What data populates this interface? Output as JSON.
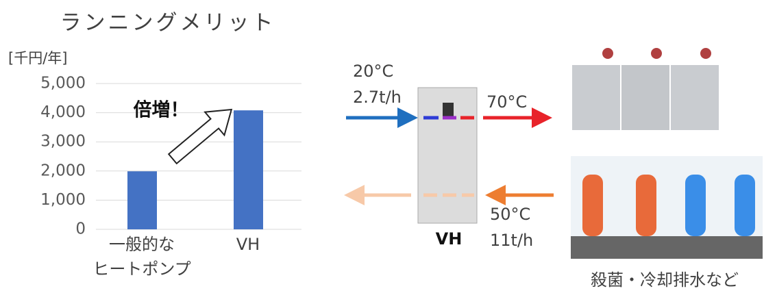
{
  "chart_data": {
    "type": "bar",
    "title": "ランニングメリット",
    "unit_label": "[千円/年]",
    "categories": [
      "一般的な\nヒートポンプ",
      "VH"
    ],
    "values": [
      1990,
      4080
    ],
    "color": "#4472c4",
    "ylim": [
      0,
      5000
    ],
    "yticks": [
      0,
      {
        "value": 1000,
        "label": "1,000"
      },
      {
        "value": 2000,
        "label": "2,000"
      },
      {
        "value": 3000,
        "label": "3,000"
      },
      {
        "value": 4000,
        "label": "4,000"
      },
      {
        "value": 5000,
        "label": "5,000"
      }
    ],
    "grid": true,
    "annotation": "倍増！"
  },
  "diagram": {
    "inlet_temp": "20°C",
    "inlet_flow": "2.7t/h",
    "outlet_temp": "70°C",
    "return_temp": "50°C",
    "return_flow": "11t/h",
    "unit_name": "VH",
    "use_caption": "殺菌・冷却排水など"
  }
}
